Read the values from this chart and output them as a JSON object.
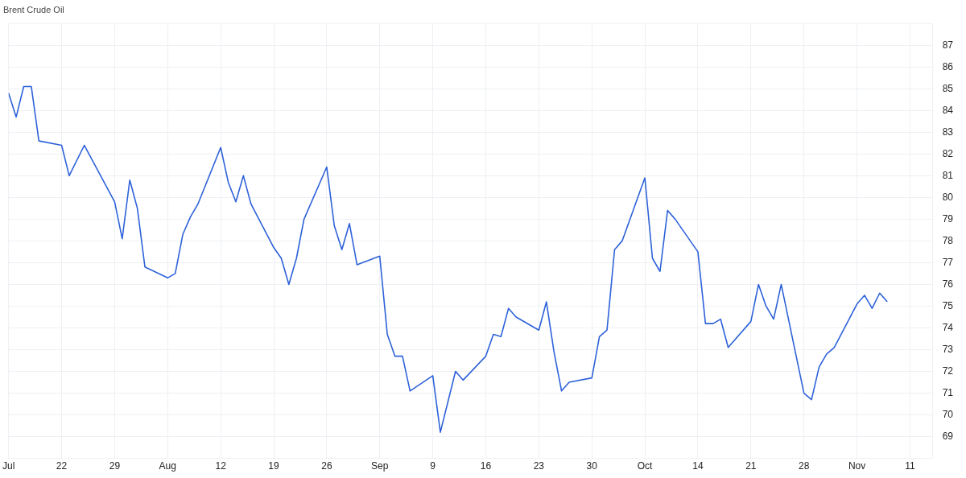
{
  "chart_data": {
    "type": "line",
    "title": "Brent Crude Oil",
    "x": [
      "--07-15",
      "--07-16",
      "--07-17",
      "--07-18",
      "--07-19",
      "--07-22",
      "--07-23",
      "--07-25",
      "--07-29",
      "--07-30",
      "--07-31",
      "--08-01",
      "--08-02",
      "--08-05",
      "--08-06",
      "--08-07",
      "--08-08",
      "--08-09",
      "--08-12",
      "--08-13",
      "--08-14",
      "--08-15",
      "--08-16",
      "--08-19",
      "--08-20",
      "--08-21",
      "--08-22",
      "--08-23",
      "--08-26",
      "--08-27",
      "--08-28",
      "--08-29",
      "--08-30",
      "--09-02",
      "--09-03",
      "--09-04",
      "--09-05",
      "--09-06",
      "--09-09",
      "--09-10",
      "--09-12",
      "--09-13",
      "--09-16",
      "--09-17",
      "--09-18",
      "--09-19",
      "--09-20",
      "--09-23",
      "--09-24",
      "--09-25",
      "--09-26",
      "--09-27",
      "--09-30",
      "--10-01",
      "--10-02",
      "--10-03",
      "--10-04",
      "--10-07",
      "--10-08",
      "--10-09",
      "--10-10",
      "--10-11",
      "--10-14",
      "--10-15",
      "--10-16",
      "--10-17",
      "--10-18",
      "--10-21",
      "--10-22",
      "--10-23",
      "--10-24",
      "--10-25",
      "--10-28",
      "--10-29",
      "--10-30",
      "--10-31",
      "--11-01",
      "--11-04",
      "--11-05",
      "--11-06",
      "--11-07",
      "--11-08"
    ],
    "series": [
      {
        "color": "#2e62d9",
        "values": [
          84.8,
          83.7,
          85.1,
          85.1,
          82.6,
          82.4,
          81.0,
          82.4,
          79.8,
          78.1,
          80.8,
          79.5,
          76.8,
          76.3,
          76.5,
          78.3,
          79.1,
          79.7,
          82.3,
          80.7,
          79.8,
          81.0,
          79.7,
          77.7,
          77.2,
          76.0,
          77.2,
          79.0,
          81.4,
          78.7,
          77.6,
          78.8,
          76.9,
          77.3,
          73.7,
          72.7,
          72.7,
          71.1,
          71.8,
          69.2,
          72.0,
          71.6,
          72.7,
          73.7,
          73.6,
          74.9,
          74.5,
          73.9,
          75.2,
          72.9,
          71.1,
          71.5,
          71.7,
          73.6,
          73.9,
          77.6,
          78.0,
          80.9,
          77.2,
          76.6,
          79.4,
          79.0,
          77.5,
          74.2,
          74.2,
          74.4,
          73.1,
          74.3,
          76.0,
          75.0,
          74.4,
          76.0,
          71.0,
          70.7,
          72.2,
          72.8,
          73.1,
          75.1,
          75.5,
          74.9,
          75.6,
          75.2
        ]
      }
    ],
    "xlim": [
      "--07-15",
      "--11-14"
    ],
    "xticks": [
      {
        "value": "--07-15",
        "label": "Jul"
      },
      {
        "value": "--07-22",
        "label": "22"
      },
      {
        "value": "--07-29",
        "label": "29"
      },
      {
        "value": "--08-05",
        "label": "Aug"
      },
      {
        "value": "--08-12",
        "label": "12"
      },
      {
        "value": "--08-19",
        "label": "19"
      },
      {
        "value": "--08-26",
        "label": "26"
      },
      {
        "value": "--09-02",
        "label": "Sep"
      },
      {
        "value": "--09-09",
        "label": "9"
      },
      {
        "value": "--09-16",
        "label": "16"
      },
      {
        "value": "--09-23",
        "label": "23"
      },
      {
        "value": "--09-30",
        "label": "30"
      },
      {
        "value": "--10-07",
        "label": "Oct"
      },
      {
        "value": "--10-14",
        "label": "14"
      },
      {
        "value": "--10-21",
        "label": "21"
      },
      {
        "value": "--10-28",
        "label": "28"
      },
      {
        "value": "--11-04",
        "label": "Nov"
      },
      {
        "value": "--11-11",
        "label": "11"
      }
    ],
    "ylim": [
      68,
      88
    ],
    "yticks": [
      69,
      70,
      71,
      72,
      73,
      74,
      75,
      76,
      77,
      78,
      79,
      80,
      81,
      82,
      83,
      84,
      85,
      86,
      87
    ],
    "grid": true,
    "legend": false,
    "marker": "none",
    "line_style": "solid"
  }
}
